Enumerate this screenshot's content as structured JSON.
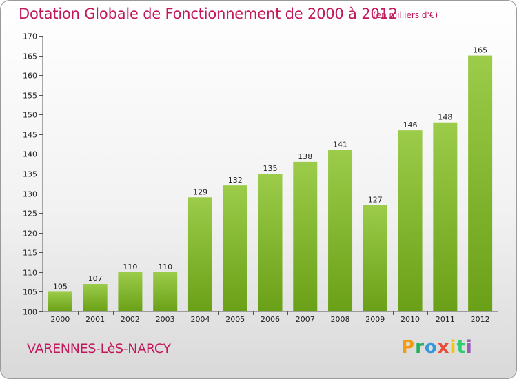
{
  "header": {
    "title": "Dotation Globale de Fonctionnement de 2000 à 2012",
    "subtitle": "(en milliers d'€)"
  },
  "footer": {
    "commune": "VARENNES-LèS-NARCY",
    "logo_text": "Proxiti"
  },
  "colors": {
    "title": "#c2185b",
    "bar_top": "#9ccc4a",
    "bar_bottom": "#6aa017"
  },
  "chart_data": {
    "type": "bar",
    "title": "Dotation Globale de Fonctionnement de 2000 à 2012",
    "subtitle": "(en milliers d'€)",
    "xlabel": "",
    "ylabel": "",
    "categories": [
      "2000",
      "2001",
      "2002",
      "2003",
      "2004",
      "2005",
      "2006",
      "2007",
      "2008",
      "2009",
      "2010",
      "2011",
      "2012"
    ],
    "values": [
      105,
      107,
      110,
      110,
      129,
      132,
      135,
      138,
      141,
      127,
      146,
      148,
      165
    ],
    "ylim": [
      100,
      170
    ],
    "yticks": [
      100,
      105,
      110,
      115,
      120,
      125,
      130,
      135,
      140,
      145,
      150,
      155,
      160,
      165,
      170
    ],
    "grid": false,
    "legend": "none"
  }
}
